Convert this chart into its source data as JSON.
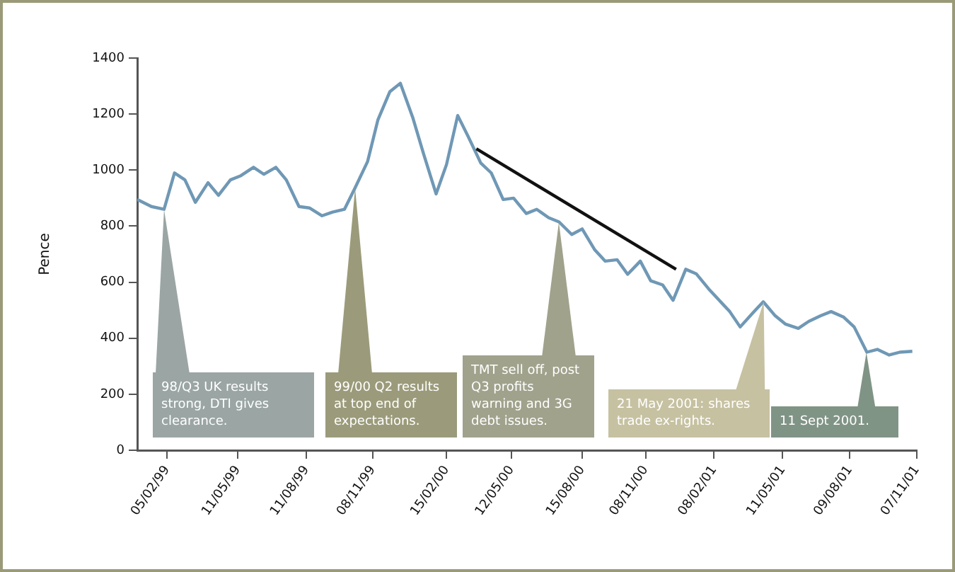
{
  "chart_data": {
    "type": "line",
    "ylabel": "Pence",
    "ylim": [
      0,
      1400
    ],
    "yticks": [
      0,
      200,
      400,
      600,
      800,
      1000,
      1200,
      1400
    ],
    "xlim": [
      "1998-12-27",
      "2001-11-07"
    ],
    "xticks": [
      {
        "value": "1999-02-05",
        "label": "05/02/99"
      },
      {
        "value": "1999-05-11",
        "label": "11/05/99"
      },
      {
        "value": "1999-08-11",
        "label": "11/08/99"
      },
      {
        "value": "1999-11-08",
        "label": "08/11/99"
      },
      {
        "value": "2000-02-15",
        "label": "15/02/00"
      },
      {
        "value": "2000-05-12",
        "label": "12/05/00"
      },
      {
        "value": "2000-08-15",
        "label": "15/08/00"
      },
      {
        "value": "2000-11-08",
        "label": "08/11/00"
      },
      {
        "value": "2001-02-08",
        "label": "08/02/01"
      },
      {
        "value": "2001-05-11",
        "label": "11/05/01"
      },
      {
        "value": "2001-08-09",
        "label": "09/08/01"
      },
      {
        "value": "2001-11-07",
        "label": "07/11/01"
      }
    ],
    "grid": false,
    "legend": false,
    "marker": "none",
    "line_style": "solid",
    "series": [
      {
        "color": "#6f98b5",
        "x": [
          "1998-12-27",
          "1999-01-15",
          "1999-02-01",
          "1999-02-15",
          "1999-03-01",
          "1999-03-15",
          "1999-04-01",
          "1999-04-15",
          "1999-05-01",
          "1999-05-15",
          "1999-06-01",
          "1999-06-15",
          "1999-07-01",
          "1999-07-15",
          "1999-08-01",
          "1999-08-15",
          "1999-09-01",
          "1999-09-15",
          "1999-10-01",
          "1999-10-15",
          "1999-11-01",
          "1999-11-15",
          "1999-12-01",
          "1999-12-15",
          "2000-01-01",
          "2000-01-15",
          "2000-02-01",
          "2000-02-15",
          "2000-03-01",
          "2000-03-15",
          "2000-04-01",
          "2000-04-15",
          "2000-05-01",
          "2000-05-15",
          "2000-06-01",
          "2000-06-15",
          "2000-07-01",
          "2000-07-15",
          "2000-08-01",
          "2000-08-15",
          "2000-09-01",
          "2000-09-15",
          "2000-10-01",
          "2000-10-15",
          "2000-11-01",
          "2000-11-15",
          "2000-12-01",
          "2000-12-15",
          "2001-01-01",
          "2001-01-15",
          "2001-02-01",
          "2001-02-15",
          "2001-03-01",
          "2001-03-15",
          "2001-04-01",
          "2001-04-15",
          "2001-05-01",
          "2001-05-15",
          "2001-06-01",
          "2001-06-15",
          "2001-07-01",
          "2001-07-15",
          "2001-08-01",
          "2001-08-15",
          "2001-09-01",
          "2001-09-15",
          "2001-10-01",
          "2001-10-15",
          "2001-11-01"
        ],
        "values": [
          895,
          870,
          860,
          990,
          965,
          885,
          955,
          910,
          965,
          980,
          1010,
          985,
          1010,
          965,
          870,
          865,
          837,
          850,
          860,
          935,
          1030,
          1180,
          1280,
          1310,
          1185,
          1060,
          915,
          1020,
          1195,
          1120,
          1025,
          990,
          895,
          900,
          845,
          860,
          830,
          815,
          770,
          790,
          715,
          675,
          680,
          628,
          675,
          605,
          590,
          535,
          646,
          630,
          575,
          535,
          495,
          440,
          490,
          530,
          480,
          450,
          435,
          460,
          480,
          495,
          475,
          440,
          350,
          360,
          340,
          350,
          353
        ]
      },
      {
        "type": "line",
        "color": "#111111",
        "x": [
          "2000-03-26",
          "2000-12-19"
        ],
        "values": [
          1076,
          646
        ]
      }
    ],
    "annotations": [
      {
        "text": "98/Q3 UK results strong, DTI gives clearance.",
        "x": "1999-02-01",
        "y": 860
      },
      {
        "text": "99/00 Q2 results at top end of expectations.",
        "x": "1999-10-15",
        "y": 935
      },
      {
        "text": "TMT sell off, post Q3 profits warning and 3G debt issues.",
        "x": "2000-07-15",
        "y": 815
      },
      {
        "text": "21 May 2001: shares trade ex-rights.",
        "x": "2001-04-15",
        "y": 530
      },
      {
        "text": "11 Sept 2001.",
        "x": "2001-09-01",
        "y": 350
      }
    ]
  }
}
